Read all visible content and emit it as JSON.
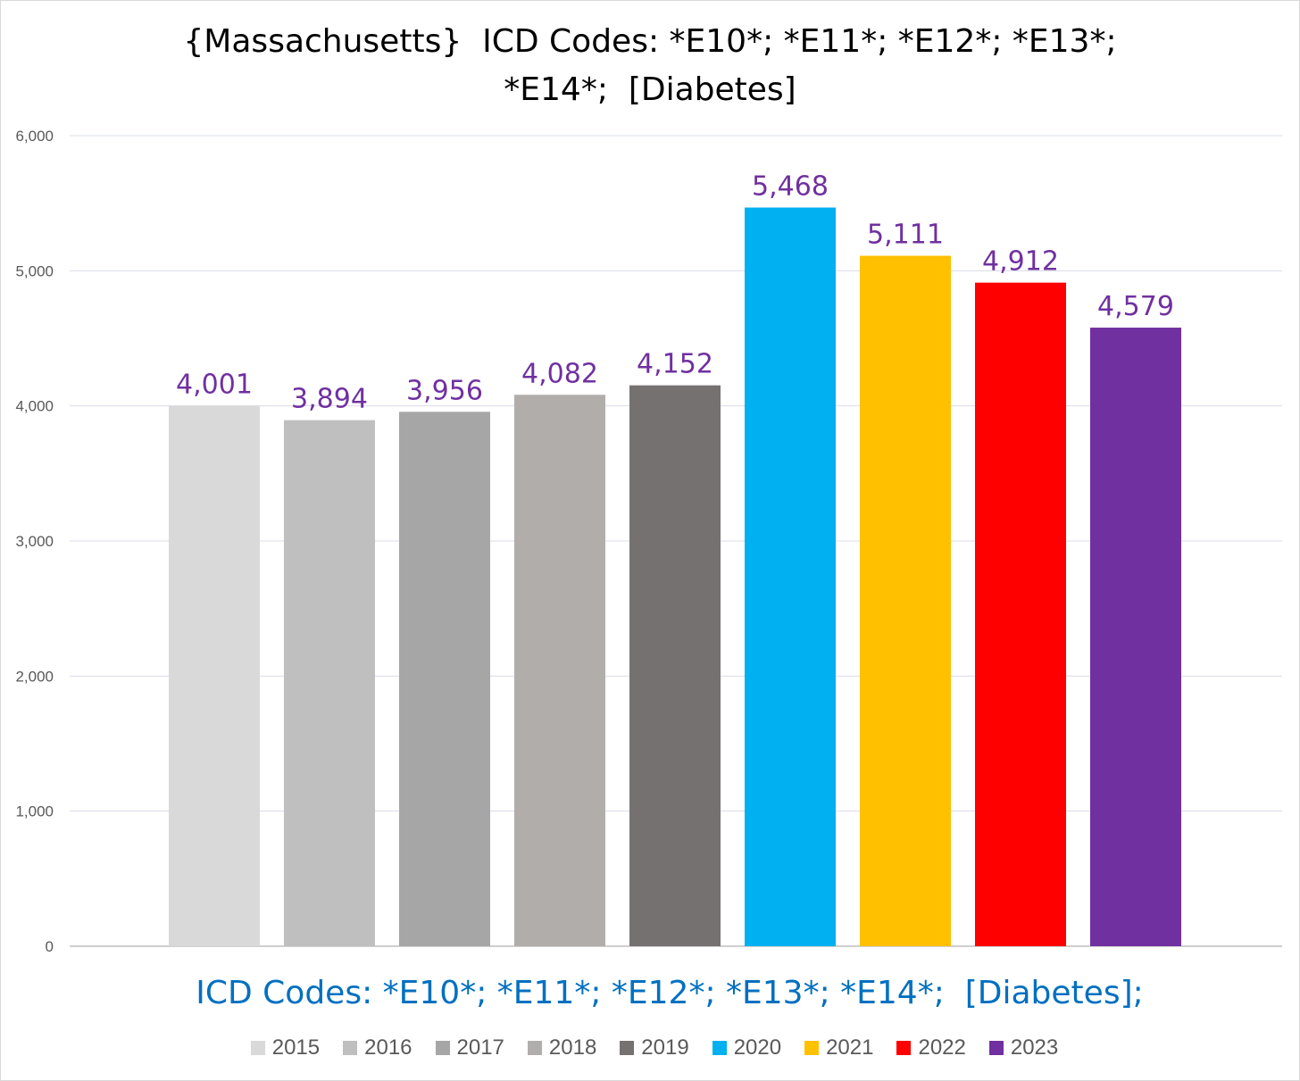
{
  "chart_data": {
    "type": "bar",
    "title_lines": [
      "{Massachusetts}  ICD Codes: *E10*; *E11*; *E12*; *E13*;",
      "*E14*;  [Diabetes]"
    ],
    "xlabel": "ICD Codes: *E10*; *E11*; *E12*; *E13*; *E14*;  [Diabetes];",
    "ylabel": "",
    "categories": [
      "2015",
      "2016",
      "2017",
      "2018",
      "2019",
      "2020",
      "2021",
      "2022",
      "2023"
    ],
    "values": [
      4001,
      3894,
      3956,
      4082,
      4152,
      5468,
      5111,
      4912,
      4579
    ],
    "value_labels": [
      "4,001",
      "3,894",
      "3,956",
      "4,082",
      "4,152",
      "5,468",
      "5,111",
      "4,912",
      "4,579"
    ],
    "colors": [
      "#d9d9d9",
      "#bfbfbf",
      "#a6a6a6",
      "#b0adab",
      "#767171",
      "#00b0f0",
      "#ffc000",
      "#ff0000",
      "#7030a0"
    ],
    "ylim": [
      0,
      6000
    ],
    "yticks": [
      0,
      1000,
      2000,
      3000,
      4000,
      5000,
      6000
    ],
    "ytick_labels": [
      "0",
      "1,000",
      "2,000",
      "3,000",
      "4,000",
      "5,000",
      "6,000"
    ],
    "grid": true,
    "legend_position": "bottom",
    "label_color": "#7030a0"
  }
}
